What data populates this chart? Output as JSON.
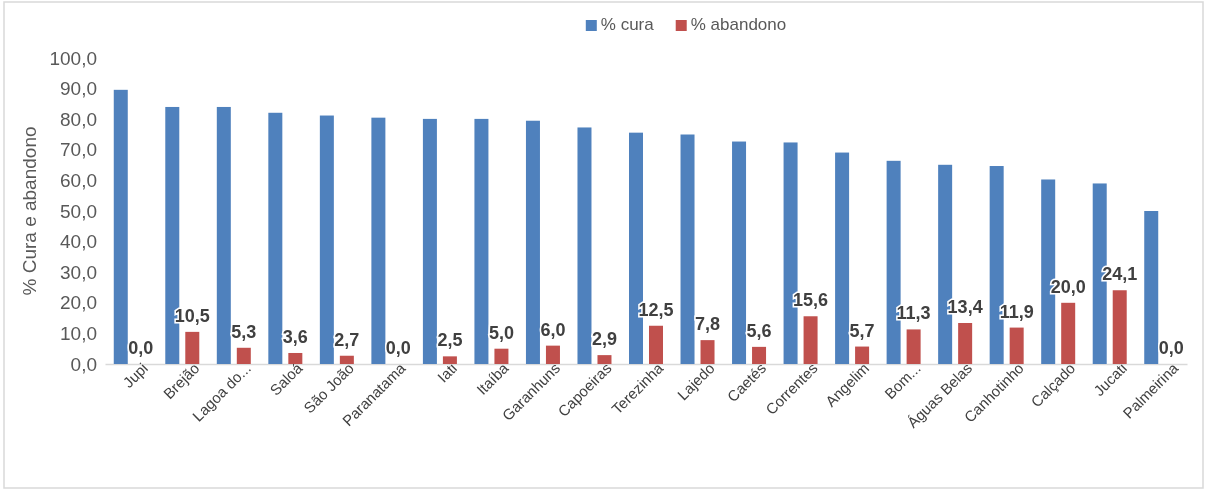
{
  "chart_data": {
    "type": "bar",
    "ylabel": "% Cura e abandono",
    "categories": [
      "Jupi",
      "Brejão",
      "Lagoa do...",
      "Saloá",
      "São João",
      "Paranatama",
      "Iati",
      "Itaíba",
      "Garanhuns",
      "Capoeiras",
      "Terezinha",
      "Lajedo",
      "Caetés",
      "Correntes",
      "Angelim",
      "Bom...",
      "Águas Belas",
      "Canhotinho",
      "Calçado",
      "Jucati",
      "Palmeirina"
    ],
    "series": [
      {
        "name": "% cura",
        "color": "#4f81bd",
        "values": [
          89.6,
          84.0,
          84.0,
          82.1,
          81.2,
          80.5,
          80.1,
          80.1,
          79.5,
          77.3,
          75.6,
          75.0,
          72.7,
          72.4,
          69.1,
          66.4,
          65.1,
          64.7,
          60.3,
          59.0,
          50.0
        ]
      },
      {
        "name": "% abandono",
        "color": "#c0504d",
        "values": [
          0.0,
          10.5,
          5.3,
          3.6,
          2.7,
          0.0,
          2.5,
          5.0,
          6.0,
          2.9,
          12.5,
          7.8,
          5.6,
          15.6,
          5.7,
          11.3,
          13.4,
          11.9,
          20.0,
          24.1,
          0.0
        ],
        "value_labels": [
          "0,0",
          "10,5",
          "5,3",
          "3,6",
          "2,7",
          "0,0",
          "2,5",
          "5,0",
          "6,0",
          "2,9",
          "12,5",
          "7,8",
          "5,6",
          "15,6",
          "5,7",
          "11,3",
          "13,4",
          "11,9",
          "20,0",
          "24,1",
          "0,0"
        ]
      }
    ],
    "ylim": [
      0,
      100
    ],
    "yticks": [
      {
        "value": 0,
        "label": "0,0"
      },
      {
        "value": 10,
        "label": "10,0"
      },
      {
        "value": 20,
        "label": "20,0"
      },
      {
        "value": 30,
        "label": "30,0"
      },
      {
        "value": 40,
        "label": "40,0"
      },
      {
        "value": 50,
        "label": "50,0"
      },
      {
        "value": 60,
        "label": "60,0"
      },
      {
        "value": 70,
        "label": "70,0"
      },
      {
        "value": 80,
        "label": "80,0"
      },
      {
        "value": 90,
        "label": "90,0"
      },
      {
        "value": 100,
        "label": "100,0"
      }
    ],
    "grid": false,
    "legend": "top"
  }
}
